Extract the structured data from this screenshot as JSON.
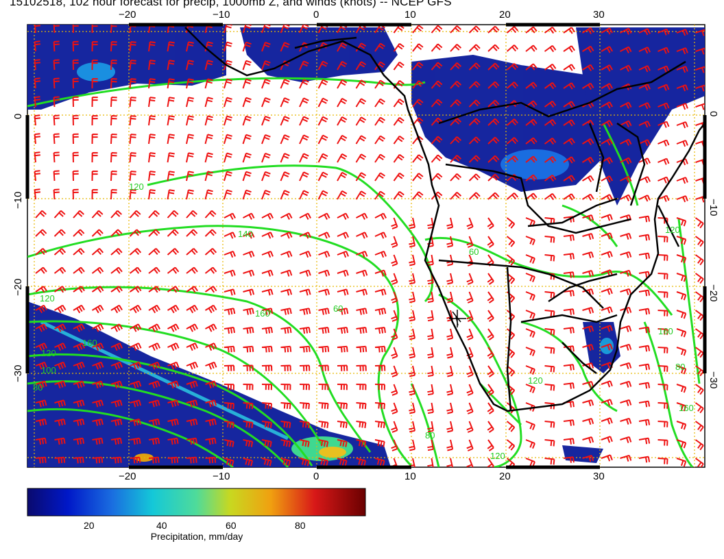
{
  "title": "15102518, 102 hour forecast for precip, 1000mb Z, and winds (knots) -- NCEP GFS",
  "lon_ticks": [
    "−20",
    "−10",
    "0",
    "10",
    "20",
    "30"
  ],
  "lat_ticks_left": [
    "0",
    "−10",
    "−20",
    "−30"
  ],
  "lat_ticks_right": [
    "0",
    "−10",
    "−20",
    "−30"
  ],
  "contour_labels": [
    "120",
    "140",
    "120",
    "160",
    "160",
    "60",
    "120",
    "100",
    "80",
    "60",
    "160",
    "80",
    "120",
    "80",
    "120",
    "120",
    "160"
  ],
  "colorbar": {
    "label": "Precipitation, mm/day",
    "ticks": [
      "20",
      "40",
      "60",
      "80"
    ],
    "range": [
      0,
      100
    ]
  },
  "colors": {
    "land_outline": "#000000",
    "contour": "#22dd22",
    "wind_barb": "#ee1111",
    "grid": "#e8b800",
    "precip_low": "#0a1a8a",
    "precip_high": "#7a0000"
  },
  "map_extent": {
    "lon": [
      -30,
      40
    ],
    "lat": [
      -40,
      10
    ]
  }
}
